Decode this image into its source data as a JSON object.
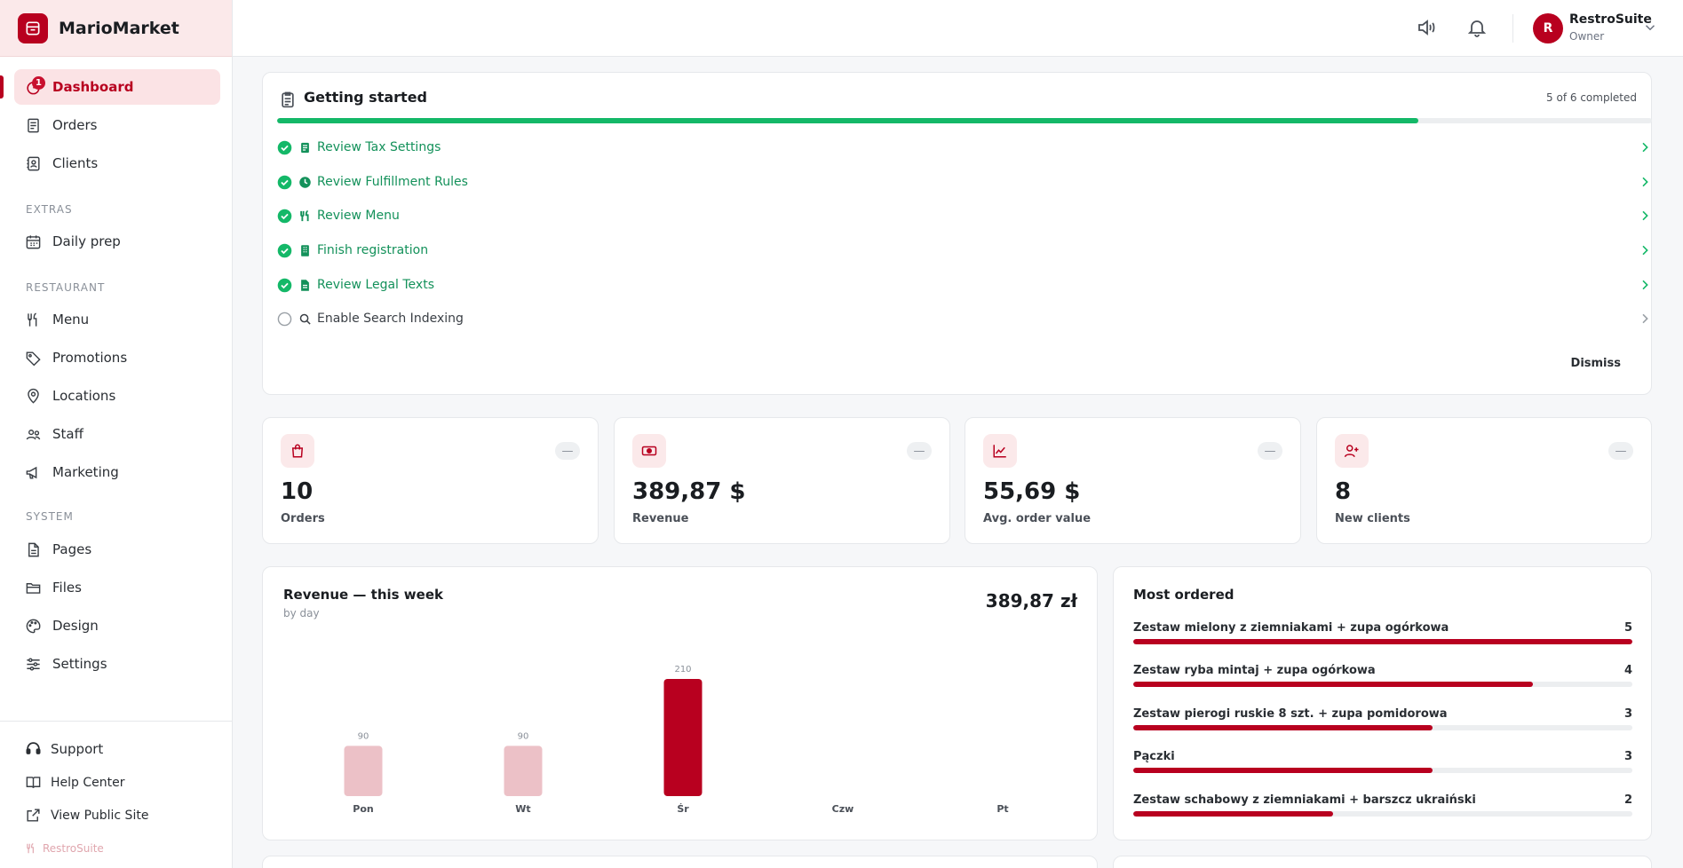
{
  "brand": {
    "name": "MarioMarket",
    "accent": "#b8001f"
  },
  "nav": {
    "items": [
      {
        "label": "Dashboard",
        "icon": "dashboard-icon",
        "badge": "1",
        "active": true
      },
      {
        "label": "Orders",
        "icon": "receipt-icon"
      },
      {
        "label": "Clients",
        "icon": "contact-icon"
      }
    ],
    "extras_heading": "EXTRAS",
    "extras": [
      {
        "label": "Daily prep",
        "icon": "calendar-icon"
      }
    ],
    "restaurant_heading": "RESTAURANT",
    "restaurant": [
      {
        "label": "Menu",
        "icon": "utensils-icon"
      },
      {
        "label": "Promotions",
        "icon": "tag-icon"
      },
      {
        "label": "Locations",
        "icon": "map-pin-icon"
      },
      {
        "label": "Staff",
        "icon": "users-icon"
      },
      {
        "label": "Marketing",
        "icon": "megaphone-icon"
      }
    ],
    "system_heading": "SYSTEM",
    "system": [
      {
        "label": "Pages",
        "icon": "file-icon"
      },
      {
        "label": "Files",
        "icon": "folder-icon"
      },
      {
        "label": "Design",
        "icon": "palette-icon"
      },
      {
        "label": "Settings",
        "icon": "sliders-icon"
      }
    ],
    "footer": {
      "support": "Support",
      "help_center": "Help Center",
      "public_site": "View Public Site",
      "powered_by": "RestroSuite"
    }
  },
  "topbar": {
    "user": {
      "initial": "R",
      "name": "RestroSuite",
      "role": "Owner"
    }
  },
  "getting_started": {
    "title": "Getting started",
    "count": "5 of 6 completed",
    "progress": 0.83,
    "tasks": [
      {
        "label": "Review Tax Settings",
        "done": true,
        "icon": "document-icon"
      },
      {
        "label": "Review Fulfillment Rules",
        "done": true,
        "icon": "clock-icon"
      },
      {
        "label": "Review Menu",
        "done": true,
        "icon": "utensils-icon"
      },
      {
        "label": "Finish registration",
        "done": true,
        "icon": "building-icon"
      },
      {
        "label": "Review Legal Texts",
        "done": true,
        "icon": "file-icon"
      },
      {
        "label": "Enable Search Indexing",
        "done": false,
        "icon": "search-icon"
      }
    ],
    "dismiss": "Dismiss"
  },
  "kpis": [
    {
      "value": "10",
      "label": "Orders",
      "icon": "shopping-bag-icon",
      "trend": "—"
    },
    {
      "value": "389,87 $",
      "label": "Revenue",
      "icon": "cash-icon",
      "trend": "—"
    },
    {
      "value": "55,69 $",
      "label": "Avg. order value",
      "icon": "line-chart-icon",
      "trend": "—"
    },
    {
      "value": "8",
      "label": "New clients",
      "icon": "user-plus-icon",
      "trend": "—"
    }
  ],
  "revenue": {
    "title": "Revenue — this week",
    "subtitle": "by day",
    "total": "389,87 zł"
  },
  "chart_data": {
    "type": "bar",
    "categories": [
      "Pon",
      "Wt",
      "Śr",
      "Czw",
      "Pt"
    ],
    "values": [
      90,
      90,
      210,
      null,
      null
    ],
    "highlight_index": 2,
    "colors": {
      "bar": "#ecc1c7",
      "highlight": "#b8001f"
    },
    "title": "Revenue — this week"
  },
  "most_ordered": {
    "title": "Most ordered",
    "items": [
      {
        "name": "Zestaw mielony z ziemniakami + zupa ogórkowa",
        "count": 5
      },
      {
        "name": "Zestaw ryba mintaj + zupa ogórkowa",
        "count": 4
      },
      {
        "name": "Zestaw pierogi ruskie 8 szt. + zupa pomidorowa",
        "count": 3
      },
      {
        "name": "Pączki",
        "count": 3
      },
      {
        "name": "Zestaw schabowy z ziemniakami + barszcz ukraiński",
        "count": 2
      }
    ]
  }
}
